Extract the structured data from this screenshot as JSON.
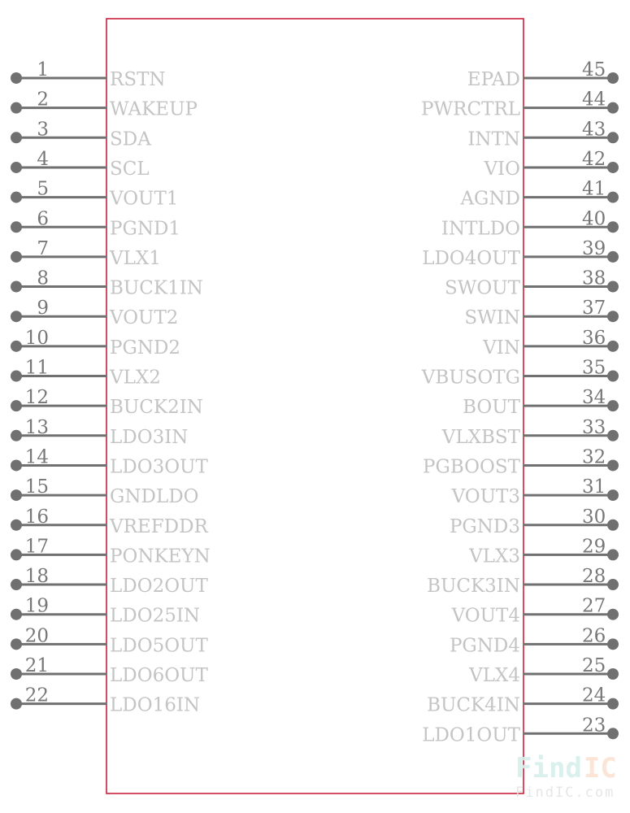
{
  "colors": {
    "body_outline": "#c8102e",
    "pin": "#707070",
    "label": "#c4c4c4",
    "number": "#777777",
    "watermark_find": "#d6efec",
    "watermark_ic": "#fbe3d3"
  },
  "left_pins": [
    {
      "number": "1",
      "name": "RSTN"
    },
    {
      "number": "2",
      "name": "WAKEUP"
    },
    {
      "number": "3",
      "name": "SDA"
    },
    {
      "number": "4",
      "name": "SCL"
    },
    {
      "number": "5",
      "name": "VOUT1"
    },
    {
      "number": "6",
      "name": "PGND1"
    },
    {
      "number": "7",
      "name": "VLX1"
    },
    {
      "number": "8",
      "name": "BUCK1IN"
    },
    {
      "number": "9",
      "name": "VOUT2"
    },
    {
      "number": "10",
      "name": "PGND2"
    },
    {
      "number": "11",
      "name": "VLX2"
    },
    {
      "number": "12",
      "name": "BUCK2IN"
    },
    {
      "number": "13",
      "name": "LDO3IN"
    },
    {
      "number": "14",
      "name": "LDO3OUT"
    },
    {
      "number": "15",
      "name": "GNDLDO"
    },
    {
      "number": "16",
      "name": "VREFDDR"
    },
    {
      "number": "17",
      "name": "PONKEYN"
    },
    {
      "number": "18",
      "name": "LDO2OUT"
    },
    {
      "number": "19",
      "name": "LDO25IN"
    },
    {
      "number": "20",
      "name": "LDO5OUT"
    },
    {
      "number": "21",
      "name": "LDO6OUT"
    },
    {
      "number": "22",
      "name": "LDO16IN"
    }
  ],
  "right_pins": [
    {
      "number": "45",
      "name": "EPAD"
    },
    {
      "number": "44",
      "name": "PWRCTRL"
    },
    {
      "number": "43",
      "name": "INTN"
    },
    {
      "number": "42",
      "name": "VIO"
    },
    {
      "number": "41",
      "name": "AGND"
    },
    {
      "number": "40",
      "name": "INTLDO"
    },
    {
      "number": "39",
      "name": "LDO4OUT"
    },
    {
      "number": "38",
      "name": "SWOUT"
    },
    {
      "number": "37",
      "name": "SWIN"
    },
    {
      "number": "36",
      "name": "VIN"
    },
    {
      "number": "35",
      "name": "VBUSOTG"
    },
    {
      "number": "34",
      "name": "BOUT"
    },
    {
      "number": "33",
      "name": "VLXBST"
    },
    {
      "number": "32",
      "name": "PGBOOST"
    },
    {
      "number": "31",
      "name": "VOUT3"
    },
    {
      "number": "30",
      "name": "PGND3"
    },
    {
      "number": "29",
      "name": "VLX3"
    },
    {
      "number": "28",
      "name": "BUCK3IN"
    },
    {
      "number": "27",
      "name": "VOUT4"
    },
    {
      "number": "26",
      "name": "PGND4"
    },
    {
      "number": "25",
      "name": "VLX4"
    },
    {
      "number": "24",
      "name": "BUCK4IN"
    },
    {
      "number": "23",
      "name": "LDO1OUT"
    }
  ],
  "watermark": {
    "logo_find": "Find",
    "logo_ic": "IC",
    "url": "FindIC.com"
  }
}
